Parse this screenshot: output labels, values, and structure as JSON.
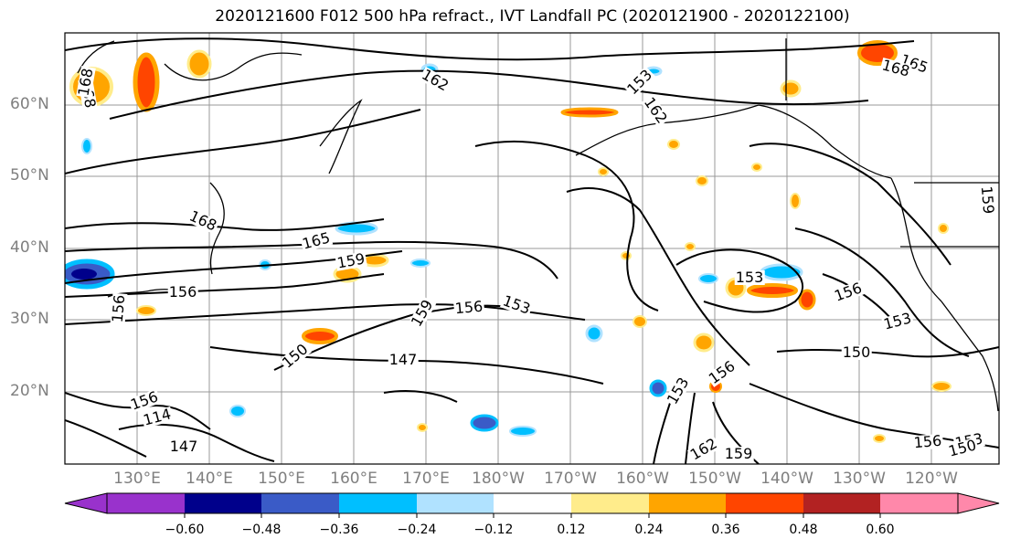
{
  "title": "2020121600 F012 500 hPa refract., IVT Landfall PC (2020121900 - 2020122100)",
  "map": {
    "lat_labels": [
      "60°N",
      "50°N",
      "40°N",
      "30°N",
      "20°N"
    ],
    "lon_labels": [
      "130°E",
      "140°E",
      "150°E",
      "160°E",
      "170°E",
      "180°W",
      "170°W",
      "160°W",
      "150°W",
      "140°W",
      "130°W",
      "120°W"
    ],
    "contour_labels": [
      "168",
      "162",
      "162",
      "168",
      "165",
      "168",
      "165",
      "159",
      "156",
      "156",
      "159",
      "156",
      "153",
      "153",
      "156",
      "153",
      "150",
      "147",
      "150",
      "156",
      "153",
      "162",
      "159",
      "156",
      "153",
      "150",
      "156",
      "114",
      "147",
      "159",
      "153",
      "168"
    ]
  },
  "colorbar": {
    "colors": [
      "#9932cc",
      "#00008b",
      "#3a5bc7",
      "#00bfff",
      "#b0e2ff",
      "#ffffff",
      "#ffec8b",
      "#ffa500",
      "#ff4500",
      "#b22222",
      "#ff88aa"
    ],
    "tick_labels": [
      "−0.60",
      "−0.48",
      "−0.36",
      "−0.24",
      "−0.12",
      "0.12",
      "0.24",
      "0.36",
      "0.48",
      "0.60"
    ]
  }
}
